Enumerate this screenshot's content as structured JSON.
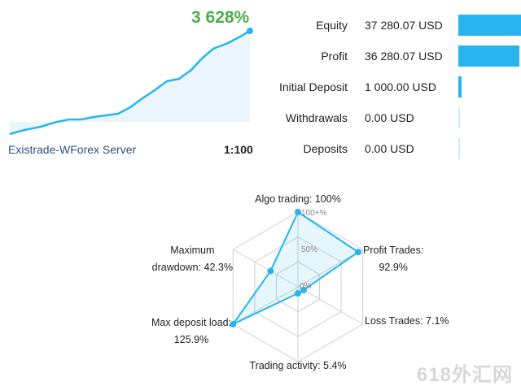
{
  "growth": {
    "percent": "3 628%",
    "server": "Existrade-WForex Server",
    "leverage": "1:100",
    "line_color": "#27b4ef",
    "percent_color": "#4aae4a"
  },
  "stats": [
    {
      "label": "Equity",
      "value": "37 280.07 USD",
      "bar_fraction": 1.0
    },
    {
      "label": "Profit",
      "value": "36 280.07 USD",
      "bar_fraction": 0.97
    },
    {
      "label": "Initial Deposit",
      "value": "1 000.00 USD",
      "bar_fraction": 0.05
    },
    {
      "label": "Withdrawals",
      "value": "0.00 USD",
      "bar_fraction": 0.0
    },
    {
      "label": "Deposits",
      "value": "0.00 USD",
      "bar_fraction": 0.0
    }
  ],
  "radar": {
    "scale_labels": [
      "100+%",
      "50%",
      "0%"
    ],
    "axes": [
      {
        "label_line1": "Algo trading: 100%",
        "label_line2": "",
        "value": 1.0
      },
      {
        "label_line1": "Profit Trades:",
        "label_line2": "92.9%",
        "value": 0.929
      },
      {
        "label_line1": "Loss Trades: 7.1%",
        "label_line2": "",
        "value": 0.071
      },
      {
        "label_line1": "Trading activity: 5.4%",
        "label_line2": "",
        "value": 0.054
      },
      {
        "label_line1": "Max deposit load:",
        "label_line2": "125.9%",
        "value": 1.0
      },
      {
        "label_line1": "Maximum",
        "label_line2": "drawdown: 42.3%",
        "value": 0.423
      }
    ]
  },
  "watermark": "618外汇网"
}
